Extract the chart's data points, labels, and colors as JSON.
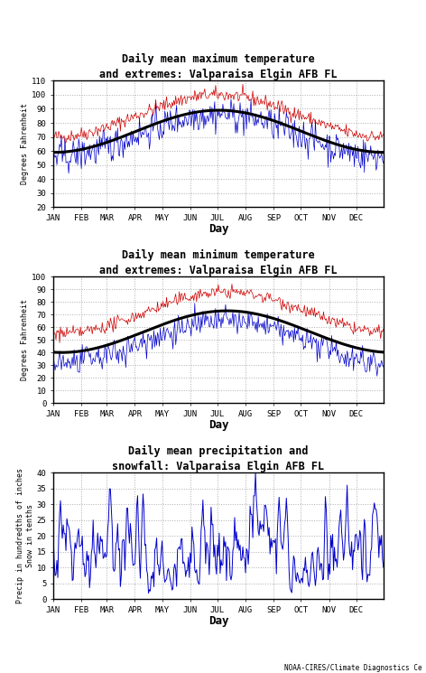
{
  "title1": "Daily mean maximum temperature\nand extremes: Valparaisa Elgin AFB FL",
  "title2": "Daily mean minimum temperature\nand extremes: Valparaisa Elgin AFB FL",
  "title3": "Daily mean precipitation and\nsnowfall: Valparaisa Elgin AFB FL",
  "ylabel1": "Degrees Fahrenheit",
  "ylabel2": "Degrees Fahrenheit",
  "ylabel3": "Precip in hundredths of inches\nSnow in tenths",
  "xlabel": "Day",
  "month_labels": [
    "JAN",
    "FEB",
    "MAR",
    "APR",
    "MAY",
    "JUN",
    "JUL",
    "AUG",
    "SEP",
    "OCT",
    "NOV",
    "DEC"
  ],
  "month_positions": [
    1,
    32,
    60,
    91,
    121,
    152,
    182,
    213,
    244,
    274,
    305,
    335
  ],
  "ylim1": [
    20,
    110
  ],
  "ylim2": [
    0,
    100
  ],
  "ylim3": [
    0,
    40
  ],
  "yticks1": [
    20,
    30,
    40,
    50,
    60,
    70,
    80,
    90,
    100,
    110
  ],
  "yticks2": [
    0,
    10,
    20,
    30,
    40,
    50,
    60,
    70,
    80,
    90,
    100
  ],
  "yticks3": [
    0,
    5,
    10,
    15,
    20,
    25,
    30,
    35,
    40
  ],
  "line_color_red": "#cc0000",
  "line_color_blue": "#0000cc",
  "line_color_black": "#000000",
  "bg_color": "#ffffff",
  "grid_color": "#999999",
  "footer": "NOAA-CIRES/Climate Diagnostics Ce",
  "seed": 42,
  "max_mean_jan": 59.0,
  "max_mean_jul": 89.0,
  "min_mean_jan": 40.0,
  "min_mean_aug": 73.0
}
